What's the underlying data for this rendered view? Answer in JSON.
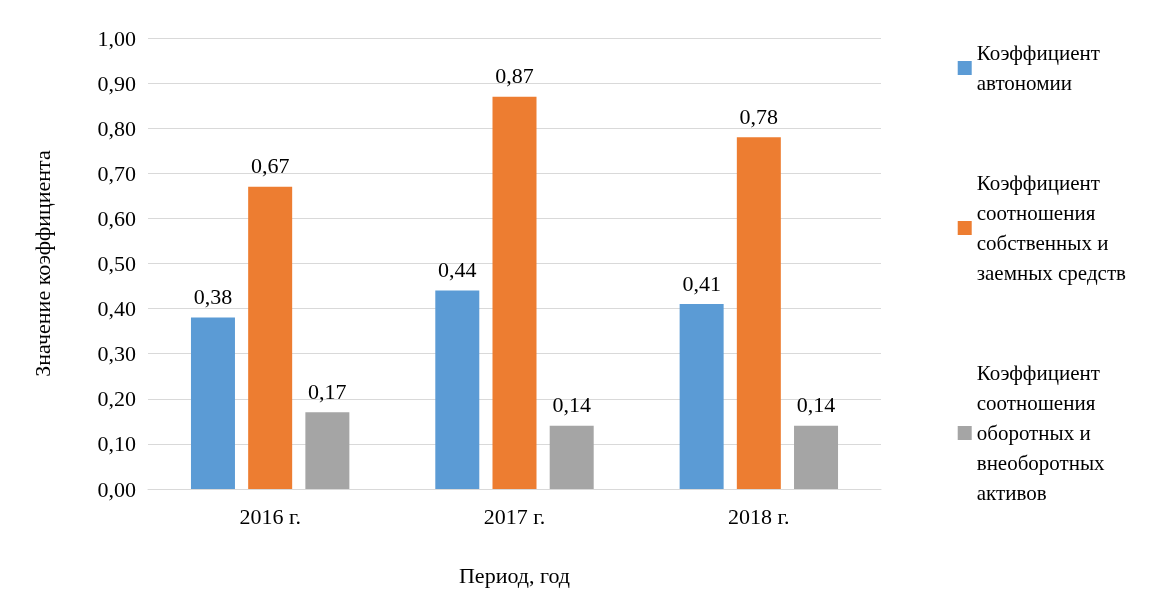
{
  "chart_data": {
    "type": "bar",
    "xlabel": "Период, год",
    "ylabel": "Значение коэффициента",
    "categories": [
      "2016 г.",
      "2017 г.",
      "2018 г."
    ],
    "series": [
      {
        "name": "Коэффициент автономии",
        "color": "#5b9bd5",
        "values": [
          0.38,
          0.44,
          0.41
        ],
        "value_labels": [
          "0,38",
          "0,44",
          "0,41"
        ]
      },
      {
        "name": "Коэффициент соотношения собственных и заемных средств",
        "color": "#ed7d31",
        "values": [
          0.67,
          0.87,
          0.78
        ],
        "value_labels": [
          "0,67",
          "0,87",
          "0,78"
        ]
      },
      {
        "name": "Коэффициент соотношения оборотных и внеоборотных активов",
        "color": "#a5a5a5",
        "values": [
          0.17,
          0.14,
          0.14
        ],
        "value_labels": [
          "0,17",
          "0,14",
          "0,14"
        ]
      }
    ],
    "ylim": [
      0,
      1
    ],
    "yticks": [
      {
        "value": 0,
        "label": "0,00"
      },
      {
        "value": 0.1,
        "label": "0,10"
      },
      {
        "value": 0.2,
        "label": "0,20"
      },
      {
        "value": 0.3,
        "label": "0,30"
      },
      {
        "value": 0.4,
        "label": "0,40"
      },
      {
        "value": 0.5,
        "label": "0,50"
      },
      {
        "value": 0.6,
        "label": "0,60"
      },
      {
        "value": 0.7,
        "label": "0,70"
      },
      {
        "value": 0.8,
        "label": "0,80"
      },
      {
        "value": 0.9,
        "label": "0,90"
      },
      {
        "value": 1,
        "label": "1,00"
      }
    ],
    "grid": "y",
    "legend": "right"
  }
}
